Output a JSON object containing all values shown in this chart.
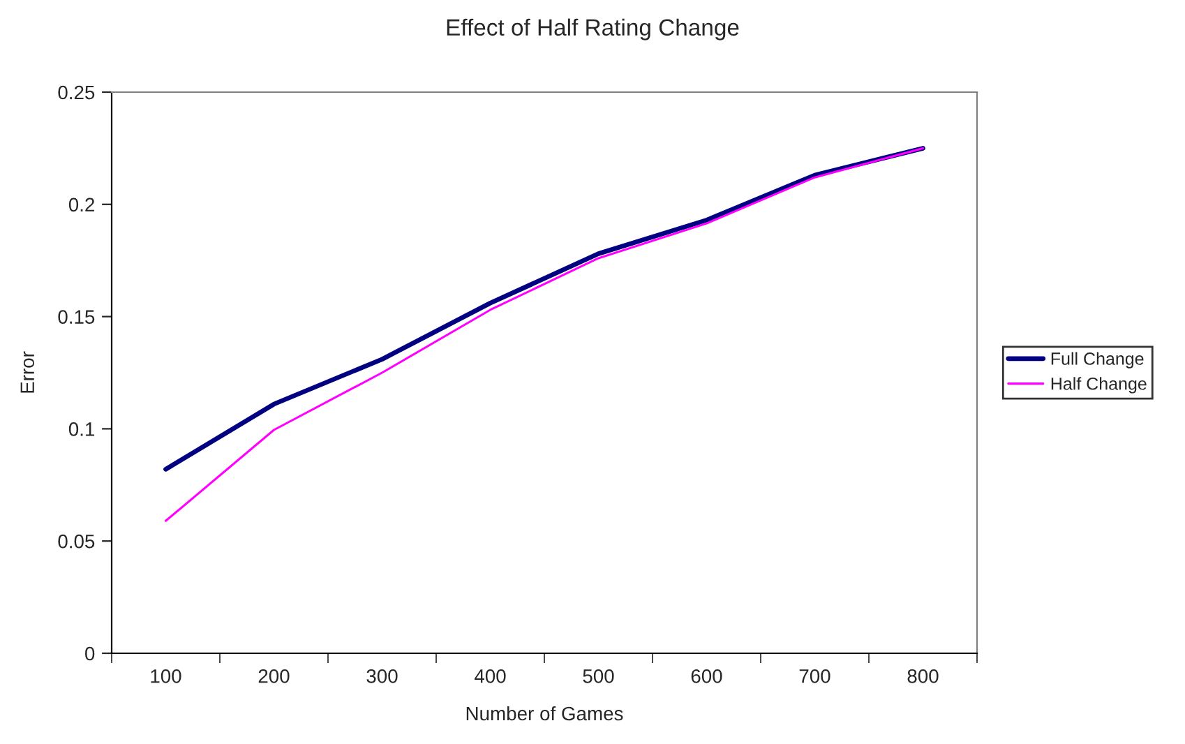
{
  "chart_data": {
    "type": "line",
    "title": "Effect of Half Rating Change",
    "xlabel": "Number of Games",
    "ylabel": "Error",
    "categories": [
      "100",
      "200",
      "300",
      "400",
      "500",
      "600",
      "700",
      "800"
    ],
    "series": [
      {
        "name": "Full Change",
        "color": "#000080",
        "values": [
          0.082,
          0.111,
          0.131,
          0.156,
          0.178,
          0.193,
          0.213,
          0.225
        ]
      },
      {
        "name": "Half Change",
        "color": "#ff00ff",
        "values": [
          0.059,
          0.0995,
          0.125,
          0.153,
          0.176,
          0.1915,
          0.212,
          0.225
        ]
      }
    ],
    "ylim": [
      0,
      0.25
    ],
    "yticks": [
      0,
      0.05,
      0.1,
      0.15,
      0.2,
      0.25
    ],
    "grid": false,
    "legend": "right",
    "marker": "none",
    "line_style": "solid"
  }
}
